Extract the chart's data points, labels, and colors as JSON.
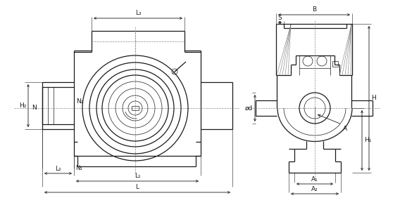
{
  "bg_color": "#ffffff",
  "line_color": "#1a1a1a",
  "center_line_color": "#888888",
  "dimension_labels": {
    "L3": "L₃",
    "L1": "L₁",
    "L2": "L₂",
    "L": "L",
    "N": "N",
    "N1": "N₁",
    "N2": "N₂",
    "H2": "H₂",
    "B": "B",
    "S": "S",
    "d": "ød",
    "H1": "H₁",
    "H": "H",
    "A": "A",
    "A1": "A₁",
    "A2": "A₂"
  },
  "font_size": 6.5,
  "lw": 0.9,
  "tlw": 0.5,
  "dlw": 0.6
}
